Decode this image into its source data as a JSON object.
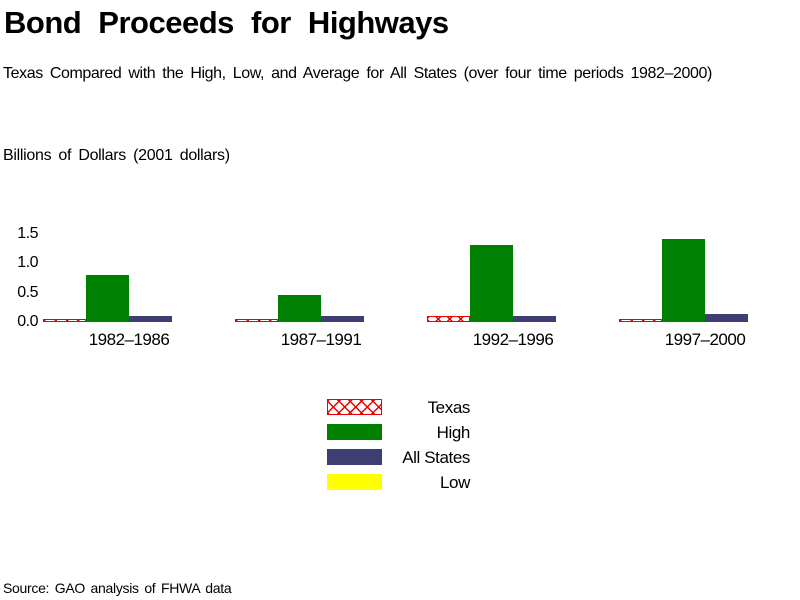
{
  "page": {
    "title": "Bond Proceeds for Highways",
    "subtitle": "Texas Compared with the High, Low, and Average for All States (over four time periods 1982–2000)",
    "units_label": "Billions of Dollars (2001 dollars)",
    "source_note": "Source: GAO analysis of FHWA data"
  },
  "colors": {
    "high_green": "#008000",
    "all_states_navy": "#3e3e72",
    "low_yellow": "#ffff00",
    "texas_hatch_red": "#ee0000",
    "text": "#000000",
    "background": "#ffffff"
  },
  "chart_data": {
    "type": "bar",
    "title": "Bond Proceeds for Highways",
    "subtitle": "Texas Compared with the High, Low, and Average for All States (over four time periods 1982–2000)",
    "ylabel": "Billions of Dollars (2001 dollars)",
    "xlabel": "",
    "categories": [
      "1982–1986",
      "1987–1991",
      "1992–1996",
      "1997–2000"
    ],
    "series": [
      {
        "name": "Texas",
        "style": "red-crosshatch",
        "values": [
          0.05,
          0.05,
          0.1,
          0.05
        ]
      },
      {
        "name": "High",
        "style": "#008000",
        "values": [
          0.8,
          0.45,
          1.3,
          1.4
        ]
      },
      {
        "name": "All States",
        "style": "#3e3e72",
        "values": [
          0.1,
          0.1,
          0.1,
          0.13
        ]
      },
      {
        "name": "Low",
        "style": "#ffff00",
        "values": [
          0.0,
          0.0,
          0.0,
          0.0
        ]
      }
    ],
    "ytick_labels": [
      "0.0",
      "0.5",
      "1.0",
      "1.5"
    ],
    "yticks": [
      0.0,
      0.5,
      1.0,
      1.5
    ],
    "ylim": [
      0,
      1.5
    ],
    "grid": false,
    "axis_lines": false,
    "legend_position": "bottom-center",
    "source": "Source: GAO analysis of FHWA data"
  },
  "legend": {
    "items": [
      {
        "label": "Texas",
        "swatch": "red-crosshatch"
      },
      {
        "label": "High",
        "swatch": "#008000"
      },
      {
        "label": "All States",
        "swatch": "#3e3e72"
      },
      {
        "label": "Low",
        "swatch": "#ffff00"
      }
    ]
  }
}
